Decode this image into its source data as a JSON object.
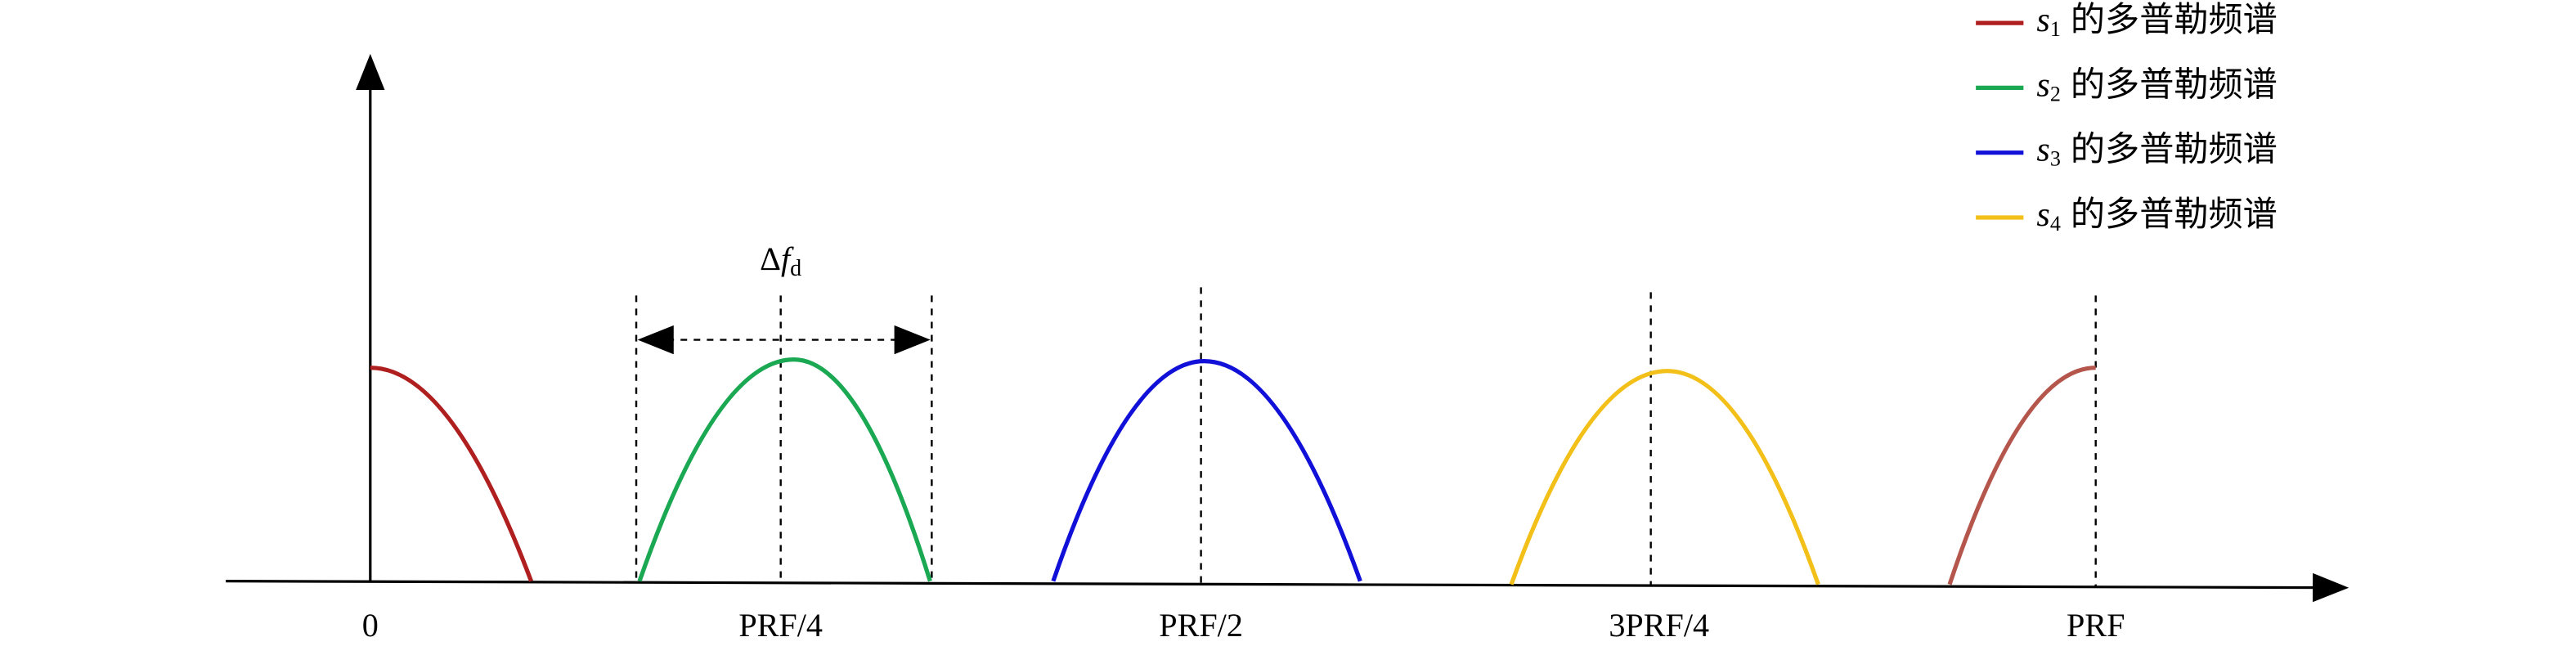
{
  "axis_labels": [
    "0",
    "PRF/4",
    "PRF/2",
    "3PRF/4",
    "PRF"
  ],
  "annotation": {
    "delta": "Δ",
    "var": "f",
    "sub": "d"
  },
  "legend": [
    {
      "var": "s",
      "sub": "1",
      "label": "的多普勒频谱",
      "color": "#b01f1f"
    },
    {
      "var": "s",
      "sub": "2",
      "label": "的多普勒频谱",
      "color": "#1aa852"
    },
    {
      "var": "s",
      "sub": "3",
      "label": "的多普勒频谱",
      "color": "#1010d8"
    },
    {
      "var": "s",
      "sub": "4",
      "label": "的多普勒频谱",
      "color": "#f2c018"
    }
  ],
  "wrap_color": "#b5564d"
}
